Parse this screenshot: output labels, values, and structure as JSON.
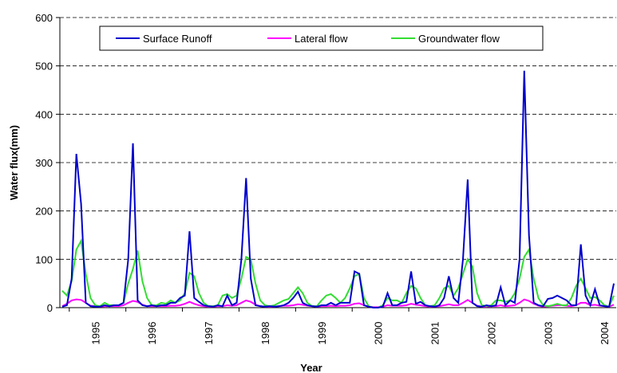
{
  "chart_data": {
    "type": "line",
    "y_label": "Water flux(mm)",
    "x_label": "Year",
    "ylim": [
      0,
      600
    ],
    "yticks": [
      0,
      100,
      200,
      300,
      400,
      500,
      600
    ],
    "grid": true,
    "legend": "top",
    "categories": [
      null,
      null,
      null,
      null,
      null,
      null,
      null,
      "1995",
      null,
      null,
      null,
      null,
      null,
      null,
      null,
      null,
      null,
      null,
      null,
      "1996",
      null,
      null,
      null,
      null,
      null,
      null,
      null,
      null,
      null,
      null,
      null,
      "1997",
      null,
      null,
      null,
      null,
      null,
      null,
      null,
      null,
      null,
      null,
      null,
      "1998",
      null,
      null,
      null,
      null,
      null,
      null,
      null,
      null,
      null,
      null,
      null,
      "1999",
      null,
      null,
      null,
      null,
      null,
      null,
      null,
      null,
      null,
      null,
      null,
      "2000",
      null,
      null,
      null,
      null,
      null,
      null,
      null,
      null,
      null,
      null,
      null,
      "2001",
      null,
      null,
      null,
      null,
      null,
      null,
      null,
      null,
      null,
      null,
      null,
      "2002",
      null,
      null,
      null,
      null,
      null,
      null,
      null,
      null,
      null,
      null,
      null,
      "2003",
      null,
      null,
      null,
      null,
      null,
      null,
      null,
      null,
      null,
      null,
      null,
      "2004",
      null,
      null
    ],
    "series": [
      {
        "name": "Surface Runoff",
        "color": "#0000cc",
        "values": [
          2,
          5,
          60,
          318,
          215,
          10,
          3,
          2,
          2,
          5,
          3,
          5,
          5,
          10,
          100,
          340,
          15,
          5,
          3,
          5,
          3,
          5,
          5,
          10,
          10,
          20,
          25,
          158,
          20,
          12,
          5,
          3,
          2,
          5,
          3,
          25,
          5,
          10,
          100,
          268,
          60,
          5,
          3,
          2,
          3,
          2,
          3,
          5,
          10,
          20,
          33,
          10,
          5,
          3,
          2,
          5,
          5,
          10,
          5,
          10,
          10,
          10,
          75,
          70,
          5,
          2,
          0,
          0,
          2,
          30,
          5,
          5,
          10,
          12,
          75,
          8,
          12,
          5,
          3,
          2,
          5,
          20,
          65,
          20,
          10,
          100,
          265,
          10,
          3,
          2,
          5,
          3,
          5,
          42,
          5,
          15,
          10,
          100,
          490,
          150,
          10,
          5,
          3,
          18,
          20,
          25,
          20,
          15,
          5,
          5,
          131,
          25,
          5,
          38,
          5,
          3,
          2,
          50
        ]
      },
      {
        "name": "Lateral flow",
        "color": "#ff00ff",
        "values": [
          3,
          8,
          15,
          17,
          16,
          10,
          4,
          3,
          2,
          3,
          3,
          3,
          3,
          5,
          10,
          14,
          12,
          6,
          3,
          3,
          3,
          3,
          3,
          4,
          4,
          5,
          8,
          12,
          8,
          5,
          3,
          2,
          2,
          3,
          3,
          5,
          4,
          5,
          10,
          15,
          12,
          6,
          3,
          2,
          2,
          2,
          3,
          4,
          4,
          5,
          7,
          6,
          4,
          3,
          2,
          3,
          3,
          4,
          3,
          4,
          4,
          5,
          8,
          9,
          5,
          2,
          1,
          1,
          2,
          5,
          4,
          4,
          4,
          5,
          8,
          6,
          5,
          3,
          2,
          2,
          3,
          5,
          7,
          5,
          5,
          10,
          16,
          10,
          4,
          2,
          2,
          3,
          3,
          5,
          3,
          4,
          5,
          10,
          17,
          14,
          8,
          4,
          2,
          3,
          4,
          5,
          5,
          4,
          3,
          5,
          10,
          10,
          5,
          6,
          4,
          3,
          2,
          6
        ]
      },
      {
        "name": "Groundwater flow",
        "color": "#33dd33",
        "values": [
          35,
          25,
          55,
          120,
          138,
          70,
          20,
          5,
          3,
          10,
          5,
          5,
          5,
          10,
          50,
          80,
          118,
          55,
          20,
          5,
          5,
          10,
          8,
          15,
          10,
          15,
          30,
          72,
          65,
          30,
          10,
          3,
          3,
          5,
          25,
          28,
          20,
          25,
          60,
          105,
          100,
          50,
          15,
          5,
          3,
          5,
          10,
          15,
          18,
          30,
          42,
          30,
          10,
          3,
          3,
          15,
          25,
          28,
          20,
          10,
          20,
          40,
          65,
          70,
          20,
          3,
          0,
          0,
          5,
          20,
          15,
          15,
          10,
          30,
          45,
          40,
          20,
          5,
          3,
          5,
          20,
          40,
          45,
          25,
          40,
          70,
          100,
          85,
          30,
          5,
          3,
          5,
          15,
          15,
          12,
          15,
          30,
          60,
          105,
          120,
          60,
          20,
          5,
          3,
          5,
          8,
          5,
          5,
          20,
          45,
          60,
          40,
          20,
          22,
          15,
          5,
          2,
          25
        ]
      }
    ]
  }
}
